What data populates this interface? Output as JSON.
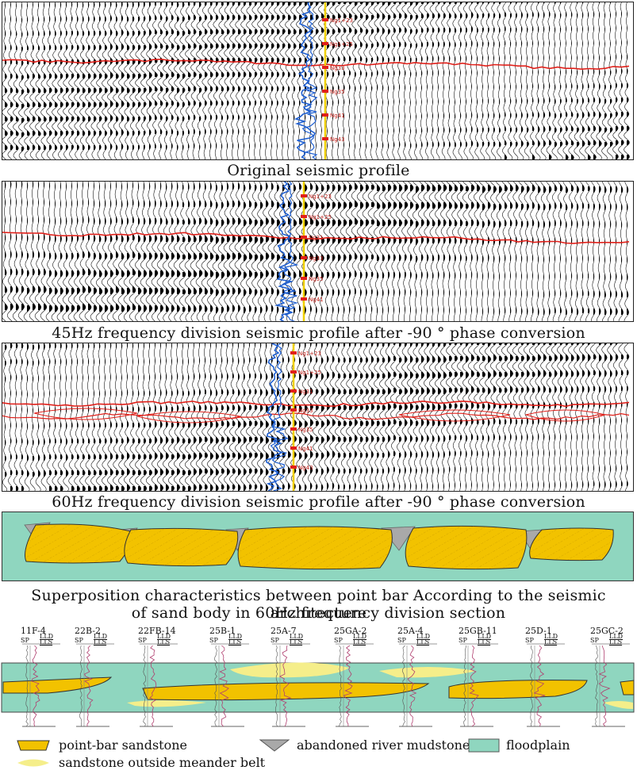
{
  "panels": [
    {
      "caption": "Original seismic profile",
      "horizons": [
        "Ng1+23",
        "Ng1+25",
        "Ng33",
        "Ng35",
        "Ng41",
        "Ng43"
      ]
    },
    {
      "caption": "45Hz frequency division seismic profile after -90 ° phase conversion",
      "horizons": [
        "Ng1+23",
        "Ng1+25",
        "Ng31",
        "Ng33",
        "Ng35",
        "Ng41"
      ]
    },
    {
      "caption": "60Hz frequency division seismic profile after -90 ° phase conversion",
      "horizons": [
        "Ng1+23",
        "Ng1+25",
        "Ng31",
        "Ng33",
        "Ng35",
        "Ng41",
        "Ng43"
      ]
    }
  ],
  "sketch_caption_line1": "Superposition characteristics between point bar According to the seismic architecture",
  "sketch_caption_line2": "of sand body in 60Hz frequency division section",
  "wells": [
    {
      "name": "11F-4",
      "sp": "SP",
      "lld": "LLD",
      "lls": "LLS"
    },
    {
      "name": "22B-2",
      "sp": "SP",
      "lld": "LLD",
      "lls": "LLS"
    },
    {
      "name": "22FB-14",
      "sp": "SP",
      "lld": "LLD",
      "lls": "LLS"
    },
    {
      "name": "25B-1",
      "sp": "SP",
      "lld": "LLD",
      "lls": "LLS"
    },
    {
      "name": "25A-7",
      "sp": "SP",
      "lld": "LLD",
      "lls": "LLS"
    },
    {
      "name": "25GA-2",
      "sp": "SP",
      "lld": "LLD",
      "lls": "LLS"
    },
    {
      "name": "25A-4",
      "sp": "SP",
      "lld": "LLD",
      "lls": "LLS"
    },
    {
      "name": "25GB-11",
      "sp": "SP",
      "lld": "LLD",
      "lls": "LLS"
    },
    {
      "name": "25D-1",
      "sp": "SP",
      "lld": "LLD",
      "lls": "LLS"
    },
    {
      "name": "25GC-2",
      "sp": "SP",
      "lld": "LLD",
      "lls": "LLS"
    }
  ],
  "legend": {
    "point_bar": "point-bar sandstone",
    "abandoned": "abandoned river mudstone",
    "floodplain": "floodplain",
    "outside": "sandstone outside meander belt"
  },
  "colors": {
    "point_bar": "#f2c200",
    "outside": "#f5ee8a",
    "abandoned": "#a9a9a9",
    "floodplain": "#8fd6bf",
    "horizon": "#e0201a",
    "well_log_blue": "#1f5fd0",
    "well_log_yellow": "#f0d000"
  }
}
